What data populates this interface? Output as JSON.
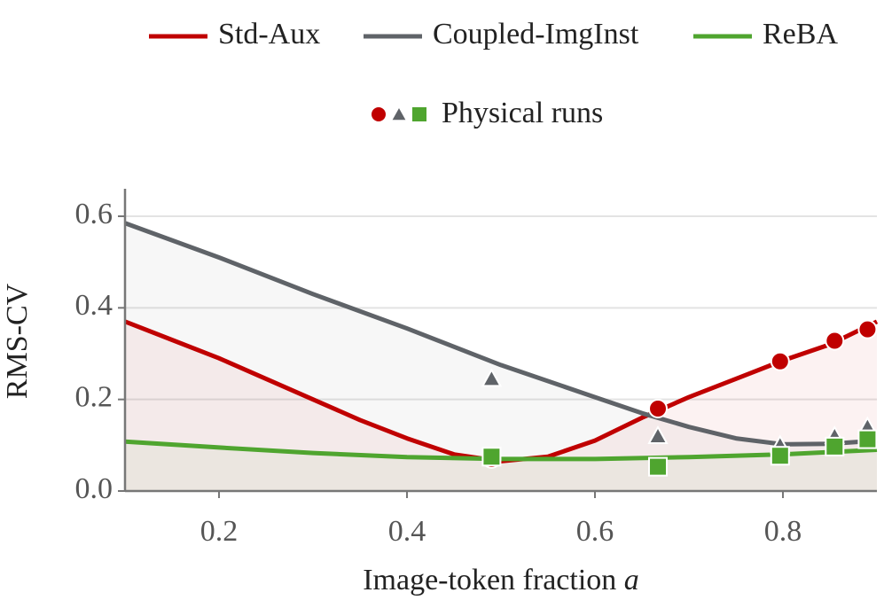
{
  "chart_data": {
    "type": "line",
    "xlabel": {
      "text": "Image-token fraction",
      "symbol": "a"
    },
    "ylabel": "RMS-CV",
    "xlim": [
      0.1,
      0.9
    ],
    "ylim": [
      0,
      0.66
    ],
    "xticks": [
      0.2,
      0.4,
      0.6,
      0.8
    ],
    "yticks": [
      {
        "value": 0,
        "label": "0.0"
      },
      0.2,
      0.4,
      0.6
    ],
    "grid": true,
    "series": [
      {
        "name": "Std-Aux",
        "color": "#c00000",
        "x": [
          0.1,
          0.15,
          0.2,
          0.25,
          0.3,
          0.35,
          0.4,
          0.45,
          0.5,
          0.55,
          0.6,
          0.65,
          0.7,
          0.75,
          0.8,
          0.85,
          0.9
        ],
        "values": [
          0.37,
          0.33,
          0.29,
          0.245,
          0.2,
          0.155,
          0.115,
          0.08,
          0.065,
          0.075,
          0.11,
          0.16,
          0.205,
          0.245,
          0.285,
          0.32,
          0.37
        ]
      },
      {
        "name": "Coupled-ImgInst",
        "color": "#5f6368",
        "x": [
          0.1,
          0.2,
          0.3,
          0.4,
          0.5,
          0.6,
          0.65,
          0.7,
          0.75,
          0.8,
          0.85,
          0.9
        ],
        "values": [
          0.585,
          0.51,
          0.43,
          0.355,
          0.275,
          0.205,
          0.17,
          0.14,
          0.115,
          0.102,
          0.103,
          0.11
        ]
      },
      {
        "name": "ReBA",
        "color": "#4fa52f",
        "x": [
          0.1,
          0.2,
          0.3,
          0.4,
          0.5,
          0.6,
          0.7,
          0.8,
          0.9
        ],
        "values": [
          0.108,
          0.095,
          0.083,
          0.074,
          0.07,
          0.07,
          0.074,
          0.08,
          0.09
        ]
      }
    ],
    "points": {
      "name": "Physical runs",
      "groups": [
        {
          "marker": "circle",
          "color": "#c00000",
          "x": [
            0.49,
            0.667,
            0.797,
            0.855,
            0.89
          ],
          "values": [
            0.07,
            0.18,
            0.283,
            0.328,
            0.353
          ]
        },
        {
          "marker": "triangle",
          "color": "#5f6368",
          "x": [
            0.49,
            0.667,
            0.797,
            0.855,
            0.89
          ],
          "values": [
            0.245,
            0.12,
            0.1,
            0.12,
            0.14
          ]
        },
        {
          "marker": "square",
          "color": "#4fa52f",
          "x": [
            0.49,
            0.667,
            0.797,
            0.855,
            0.89
          ],
          "values": [
            0.075,
            0.053,
            0.077,
            0.097,
            0.113
          ]
        }
      ]
    }
  }
}
